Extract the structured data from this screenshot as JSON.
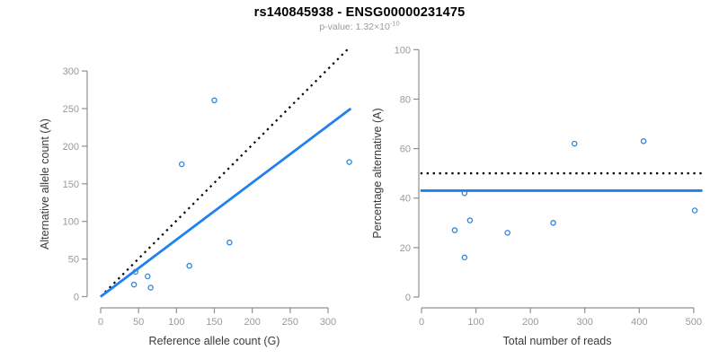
{
  "header": {
    "title": "rs140845938 - ENSG00000231475",
    "pvalue_prefix": "p-value: 1.32×10",
    "pvalue_exponent": "-10"
  },
  "colors": {
    "background": "#ffffff",
    "title_black": "#000000",
    "subtitle_gray": "#9b9b9b",
    "axis_gray": "#8f8f8f",
    "tick_label_gray": "#999999",
    "axis_title_dark": "#3a3a3a",
    "line_blue": "#1f80f0",
    "point_blue": "#2d84d8",
    "dotted_black": "#000000"
  },
  "chart_data": [
    {
      "id": "allele-count-scatter",
      "type": "scatter",
      "title": "",
      "xlabel": "Reference allele count (G)",
      "ylabel": "Alternative allele count (A)",
      "xticks": [
        0,
        50,
        100,
        150,
        200,
        250,
        300
      ],
      "yticks": [
        0,
        50,
        100,
        150,
        200,
        250,
        300
      ],
      "xlim": [
        0,
        332
      ],
      "ylim": [
        0,
        332
      ],
      "grid": false,
      "legend": "none",
      "points": [
        [
          44,
          16
        ],
        [
          46,
          33
        ],
        [
          62,
          27
        ],
        [
          66,
          12
        ],
        [
          107,
          176
        ],
        [
          117,
          41
        ],
        [
          150,
          261
        ],
        [
          170,
          72
        ],
        [
          328,
          179
        ]
      ],
      "lines": [
        {
          "name": "identity-line",
          "style": "dotted",
          "color": "#000000",
          "x1": 0,
          "y1": 0,
          "x2": 328,
          "y2": 331
        },
        {
          "name": "fit-line",
          "style": "solid",
          "color": "#1f80f0",
          "x1": 0,
          "y1": 0,
          "x2": 330,
          "y2": 250
        }
      ]
    },
    {
      "id": "percentage-alternative-scatter",
      "type": "scatter",
      "title": "",
      "xlabel": "Total number of reads",
      "ylabel": "Percentage alternative (A)",
      "xticks": [
        0,
        100,
        200,
        300,
        400,
        500
      ],
      "yticks": [
        0,
        20,
        40,
        60,
        80,
        100
      ],
      "xlim": [
        0,
        518
      ],
      "ylim": [
        0,
        100
      ],
      "grid": false,
      "legend": "none",
      "points": [
        [
          61,
          27
        ],
        [
          79,
          42
        ],
        [
          79,
          16
        ],
        [
          89,
          31
        ],
        [
          158,
          26
        ],
        [
          242,
          30
        ],
        [
          281,
          62
        ],
        [
          408,
          63
        ],
        [
          502,
          35
        ]
      ],
      "lines": [
        {
          "name": "expected-percentage-line",
          "style": "dotted",
          "color": "#000000",
          "x1": -2,
          "y1": 50,
          "x2": 516,
          "y2": 50
        },
        {
          "name": "mean-percentage-line",
          "style": "solid",
          "color": "#1f80f0",
          "x1": -2,
          "y1": 43,
          "x2": 516,
          "y2": 43
        }
      ]
    }
  ]
}
